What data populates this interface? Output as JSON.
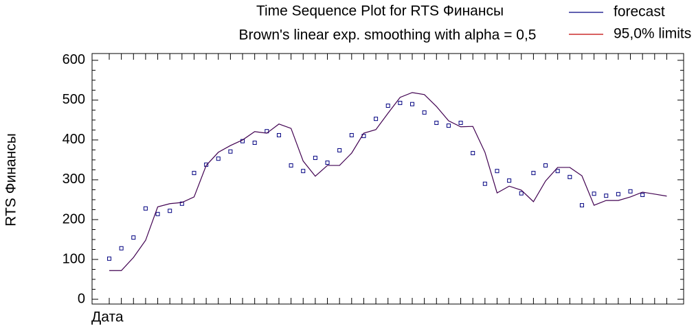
{
  "chart_data": {
    "type": "line",
    "title": "Time Sequence Plot for RTS Финансы",
    "subtitle": "Brown's linear exp. smoothing with alpha = 0,5",
    "x_label": "Дата",
    "y_label": "RTS Финансы",
    "categories": [
      null,
      null,
      null,
      null,
      null,
      null,
      null,
      null,
      null,
      null,
      null,
      null,
      null,
      null,
      null,
      null,
      null,
      null,
      null,
      null,
      null,
      null,
      null,
      null,
      null,
      null,
      null,
      null,
      null,
      null,
      null,
      null,
      null,
      null,
      null,
      null,
      null,
      null,
      null,
      null,
      null,
      null,
      null,
      null,
      null,
      null,
      null
    ],
    "series": [
      {
        "color": "#000080",
        "marker": "square",
        "values": [
          102,
          128,
          155,
          228,
          214,
          222,
          240,
          317,
          338,
          353,
          371,
          397,
          393,
          422,
          412,
          336,
          322,
          355,
          343,
          374,
          412,
          410,
          453,
          486,
          493,
          490,
          469,
          443,
          436,
          443,
          367,
          290,
          322,
          298,
          266,
          317,
          336,
          322,
          307,
          236,
          265,
          260,
          264,
          271,
          262,
          null,
          null
        ]
      },
      {
        "name": "forecast",
        "color": "#400050",
        "values": [
          72,
          72,
          105,
          148,
          232,
          240,
          243,
          257,
          336,
          369,
          386,
          400,
          421,
          417,
          440,
          429,
          347,
          309,
          336,
          336,
          367,
          417,
          426,
          467,
          507,
          519,
          514,
          484,
          448,
          433,
          434,
          369,
          267,
          284,
          274,
          245,
          297,
          331,
          331,
          310,
          236,
          248,
          248,
          257,
          269,
          264,
          259
        ]
      }
    ],
    "legend": [
      {
        "name": "forecast",
        "color": "#000080"
      },
      {
        "name": "95,0% limits",
        "color": "#c00000"
      }
    ],
    "ylim": [
      -12,
      617
    ],
    "yticks": [
      0,
      100,
      200,
      300,
      400,
      500,
      600
    ]
  }
}
